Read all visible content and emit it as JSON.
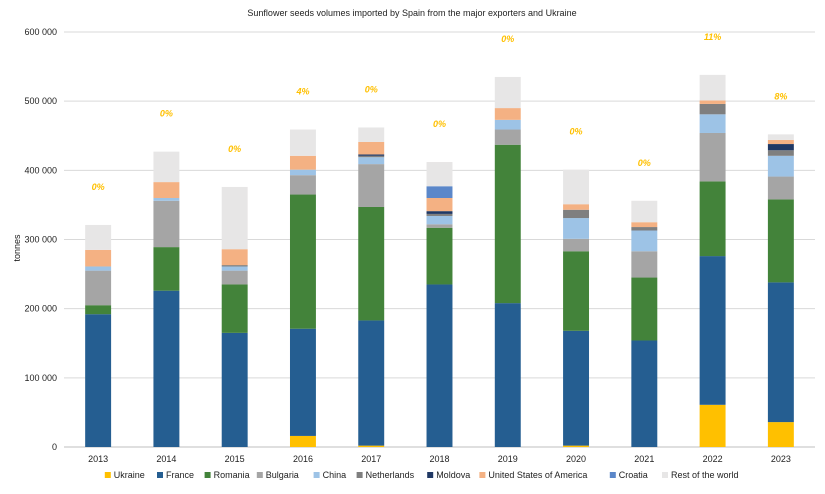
{
  "chart_data": {
    "type": "bar",
    "stacked": true,
    "title": "Sunflower seeds volumes imported by Spain from the major exporters and Ukraine",
    "xlabel": "",
    "ylabel": "tonnes",
    "ylim": [
      0,
      600000
    ],
    "yticks": [
      0,
      100000,
      200000,
      300000,
      400000,
      500000,
      600000
    ],
    "ytick_labels": [
      "0",
      "100 000",
      "200 000",
      "300 000",
      "400 000",
      "500 000",
      "600 000"
    ],
    "grid": true,
    "legend_position": "bottom",
    "categories": [
      "2013",
      "2014",
      "2015",
      "2016",
      "2017",
      "2018",
      "2019",
      "2020",
      "2021",
      "2022",
      "2023"
    ],
    "annotations": [
      "0%",
      "0%",
      "0%",
      "4%",
      "0%",
      "0%",
      "0%",
      "0%",
      "0%",
      "11%",
      "8%"
    ],
    "series": [
      {
        "name": "Ukraine",
        "color": "#FFC000",
        "values": [
          0,
          0,
          0,
          16000,
          2000,
          0,
          0,
          2000,
          0,
          61000,
          36000
        ]
      },
      {
        "name": "France",
        "color": "#255E91",
        "values": [
          192000,
          226000,
          165000,
          155000,
          181000,
          235000,
          208000,
          166000,
          154000,
          215000,
          202000
        ]
      },
      {
        "name": "Romania",
        "color": "#43833A",
        "values": [
          13000,
          63000,
          70000,
          194000,
          164000,
          82000,
          229000,
          115000,
          91000,
          108000,
          120000
        ]
      },
      {
        "name": "Bulgaria",
        "color": "#A5A5A5",
        "values": [
          50000,
          67000,
          20000,
          28000,
          62000,
          5000,
          22000,
          18000,
          38000,
          70000,
          33000
        ]
      },
      {
        "name": "China",
        "color": "#9DC3E6",
        "values": [
          6000,
          4000,
          6000,
          8000,
          10000,
          12000,
          14000,
          30000,
          30000,
          27000,
          30000
        ]
      },
      {
        "name": "Netherlands",
        "color": "#7F7F7F",
        "values": [
          0,
          0,
          2000,
          0,
          2000,
          3000,
          0,
          12000,
          5000,
          15000,
          8000
        ]
      },
      {
        "name": "Moldova",
        "color": "#203864",
        "values": [
          0,
          0,
          0,
          0,
          2000,
          4000,
          0,
          0,
          0,
          0,
          9000
        ]
      },
      {
        "name": "United States of America",
        "color": "#F4B183",
        "values": [
          24000,
          23000,
          23000,
          20000,
          18000,
          19000,
          17000,
          8000,
          7000,
          5000,
          6000
        ]
      },
      {
        "name": "Croatia",
        "color": "#5B87C9",
        "values": [
          0,
          0,
          0,
          0,
          0,
          17000,
          0,
          0,
          0,
          0,
          0
        ]
      },
      {
        "name": "Rest of the world",
        "color": "#E7E6E6",
        "values": [
          36000,
          44000,
          90000,
          38000,
          21000,
          35000,
          45000,
          50000,
          31000,
          37000,
          8000
        ]
      }
    ]
  }
}
